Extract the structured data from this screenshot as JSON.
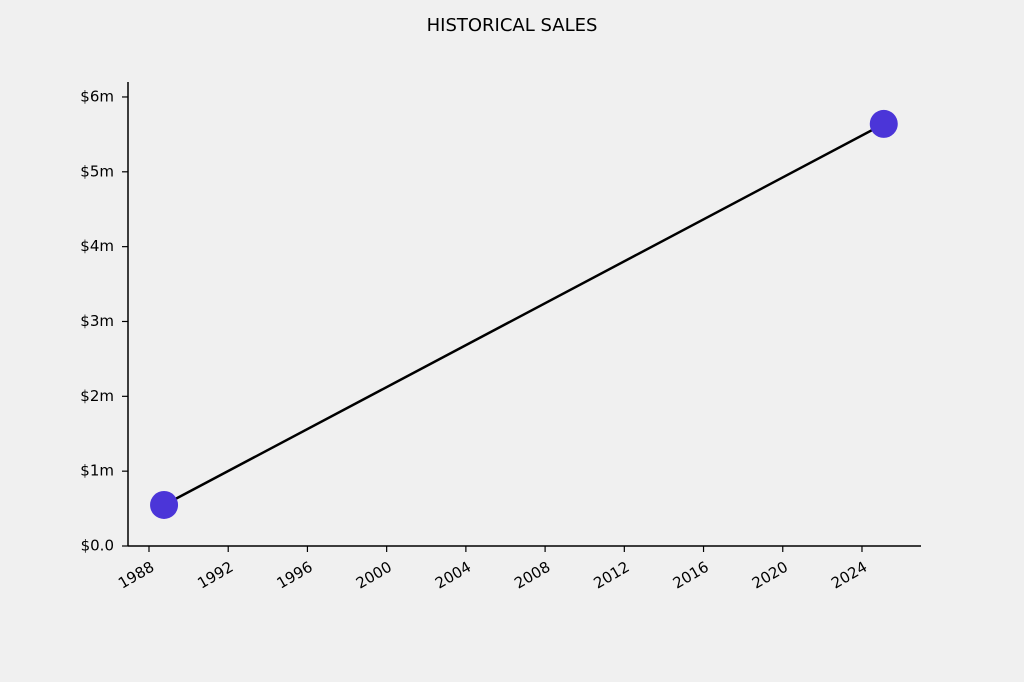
{
  "chart_data": {
    "type": "line",
    "title": "HISTORICAL SALES",
    "x": [
      1988.76,
      2025.1
    ],
    "series": [
      {
        "values": [
          548000,
          5640000
        ],
        "color": "#4b35d8",
        "line_color": "#000000"
      }
    ],
    "xlim": [
      1986.94,
      2026.98
    ],
    "xticks": [
      1988,
      1992,
      1996,
      2000,
      2004,
      2008,
      2012,
      2016,
      2020,
      2024
    ],
    "ylim": [
      0,
      6200000
    ],
    "yticks": [
      {
        "value": 0,
        "label": "$0.0"
      },
      {
        "value": 1000000,
        "label": "$1m"
      },
      {
        "value": 2000000,
        "label": "$2m"
      },
      {
        "value": 3000000,
        "label": "$3m"
      },
      {
        "value": 4000000,
        "label": "$4m"
      },
      {
        "value": 5000000,
        "label": "$5m"
      },
      {
        "value": 6000000,
        "label": "$6m"
      }
    ],
    "grid": false
  }
}
